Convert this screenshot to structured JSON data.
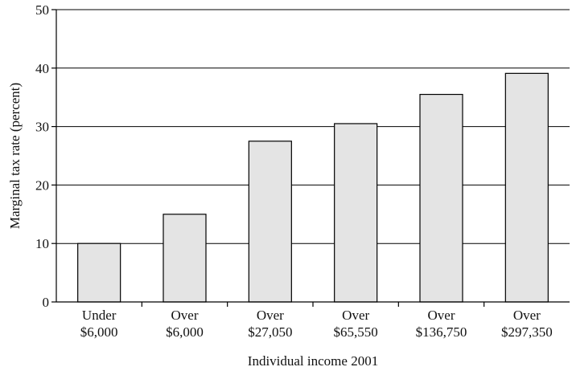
{
  "chart_data": {
    "type": "bar",
    "title": "",
    "xlabel": "Individual income 2001",
    "ylabel": "Marginal tax rate (percent)",
    "ylim": [
      0,
      50
    ],
    "yticks": [
      0,
      10,
      20,
      30,
      40,
      50
    ],
    "grid": "horizontal",
    "categories": [
      [
        "Under",
        "$6,000"
      ],
      [
        "Over",
        "$6,000"
      ],
      [
        "Over",
        "$27,050"
      ],
      [
        "Over",
        "$65,550"
      ],
      [
        "Over",
        "$136,750"
      ],
      [
        "Over",
        "$297,350"
      ]
    ],
    "values": [
      10,
      15,
      27.5,
      30.5,
      35.5,
      39.1
    ],
    "colors": {
      "bar_fill": "#e4e4e4",
      "bar_stroke": "#000000",
      "grid": "#000000"
    }
  }
}
